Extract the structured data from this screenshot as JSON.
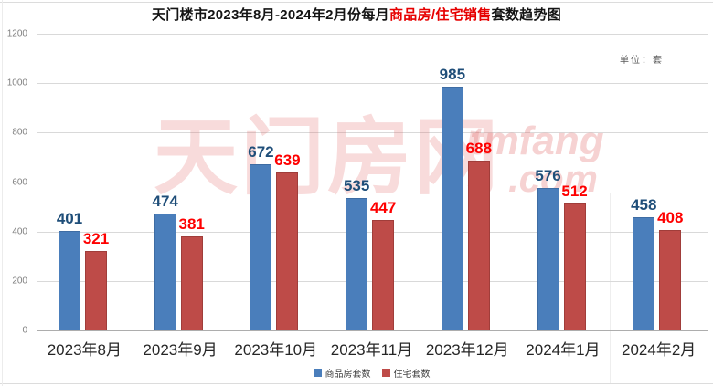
{
  "title": {
    "prefix": "天门楼市2023年8月-2024年2月份每月",
    "highlight": "商品房/住宅销售",
    "suffix": "套数趋势图"
  },
  "unit_label": "单位：套",
  "watermark": {
    "cn": "天门房网",
    "en_line1": "tmfang",
    "en_line2": ".com"
  },
  "colors": {
    "blue_bar": "#4a7ebb",
    "blue_bar_edge": "#3e6ca3",
    "red_bar": "#be4b48",
    "red_bar_edge": "#a03d3a",
    "blue_value_label": "#1f4e79",
    "red_value_label": "#fe0000",
    "title_highlight": "#e60000",
    "gridline": "#d9d9d9",
    "axis_line": "#adadad",
    "watermark": "#e05c5c"
  },
  "chart_data": {
    "type": "bar",
    "title": "天门楼市2023年8月-2024年2月份每月商品房/住宅销售套数趋势图",
    "unit": "套",
    "categories": [
      "2023年8月",
      "2023年9月",
      "2023年10月",
      "2023年11月",
      "2023年12月",
      "2024年1月",
      "2024年2月"
    ],
    "series": [
      {
        "name": "商品房套数",
        "color": "#4a7ebb",
        "label_color": "#1f4e79",
        "values": [
          401,
          474,
          672,
          535,
          985,
          576,
          458
        ]
      },
      {
        "name": "住宅套数",
        "color": "#be4b48",
        "label_color": "#fe0000",
        "values": [
          321,
          381,
          639,
          447,
          688,
          512,
          408
        ]
      }
    ],
    "ylim": [
      0,
      1200
    ],
    "yticks": [
      0,
      200,
      400,
      600,
      800,
      1000,
      1200
    ],
    "grid": true,
    "legend_position": "bottom",
    "value_labels": true
  }
}
